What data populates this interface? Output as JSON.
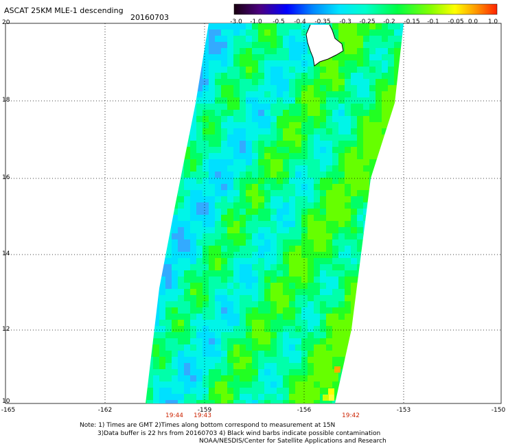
{
  "header": {
    "title": "ASCAT 25KM MLE-1 descending",
    "date": "20160703"
  },
  "colorbar": {
    "labels": [
      "-3.0",
      "-1.0",
      "-0.5",
      "-0.4",
      "-0.35",
      "-0.3",
      "-0.25",
      "-0.2",
      "-0.15",
      "-0.1",
      "-0.05",
      "0.0",
      "1.0"
    ],
    "colors": [
      "#1a0010",
      "#4b0082",
      "#0000ff",
      "#0066ff",
      "#00aaff",
      "#00e5ff",
      "#00ffcc",
      "#00ff66",
      "#33ff00",
      "#aaff00",
      "#ffff00",
      "#ffaa00",
      "#ff3300"
    ]
  },
  "axes": {
    "y_ticks": [
      "20",
      "18",
      "16",
      "14",
      "12",
      "10"
    ],
    "x_ticks": [
      "-165",
      "-162",
      "-159",
      "-156",
      "-153",
      "-150"
    ],
    "lon_range": [
      -165,
      -150
    ],
    "lat_range": [
      10,
      20
    ]
  },
  "swath_times": [
    "19:44",
    "19:43",
    "19:42"
  ],
  "footer": {
    "line1": "Note: 1) Times are GMT 2)Times along bottom correspond to measurement at 15N",
    "line2": "3)Data buffer is 22 hrs from 20160703 4) Black wind barbs indicate possible contamination",
    "line3": "NOAA/NESDIS/Center for Satellite Applications and Research"
  }
}
